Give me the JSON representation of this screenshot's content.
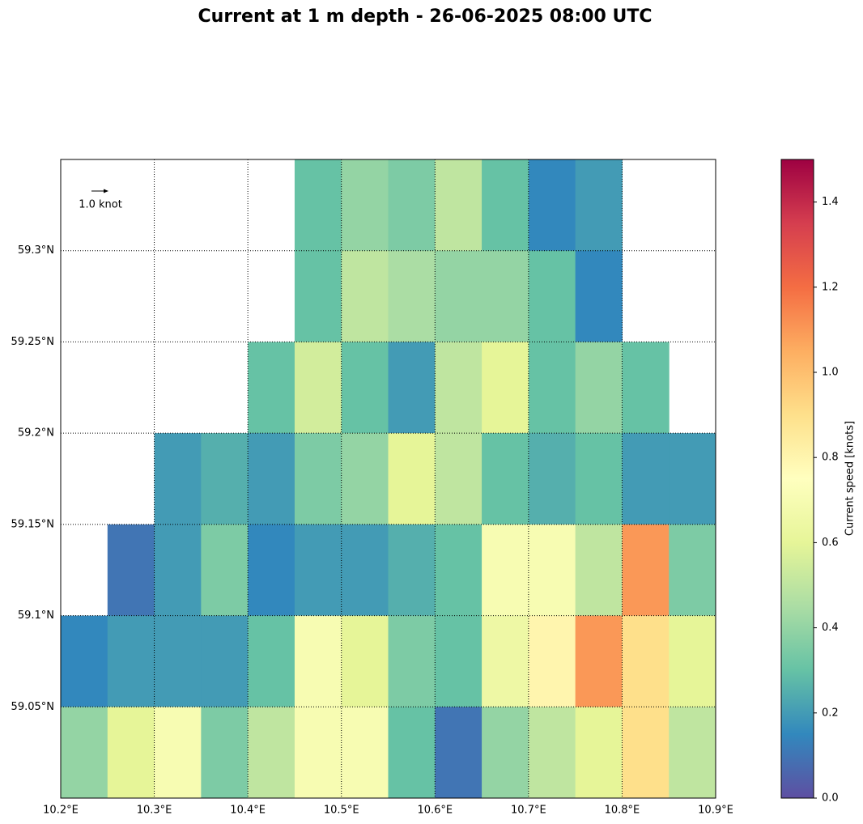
{
  "chart_data": {
    "type": "heatmap",
    "title": "Current at 1 m depth - 26-06-2025 08:00 UTC",
    "colorbar_label": "Current speed [knots]",
    "quiver_key": "1.0 knot",
    "xlim": [
      10.2,
      10.9
    ],
    "ylim": [
      59.0,
      59.35
    ],
    "xticks": [
      {
        "value": 10.2,
        "label": "10.2°E"
      },
      {
        "value": 10.3,
        "label": "10.3°E"
      },
      {
        "value": 10.4,
        "label": "10.4°E"
      },
      {
        "value": 10.5,
        "label": "10.5°E"
      },
      {
        "value": 10.6,
        "label": "10.6°E"
      },
      {
        "value": 10.7,
        "label": "10.7°E"
      },
      {
        "value": 10.8,
        "label": "10.8°E"
      },
      {
        "value": 10.9,
        "label": "10.9°E"
      }
    ],
    "yticks": [
      {
        "value": 59.05,
        "label": "59.05°N"
      },
      {
        "value": 59.1,
        "label": "59.1°N"
      },
      {
        "value": 59.15,
        "label": "59.15°N"
      },
      {
        "value": 59.2,
        "label": "59.2°N"
      },
      {
        "value": 59.25,
        "label": "59.25°N"
      },
      {
        "value": 59.3,
        "label": "59.3°N"
      }
    ],
    "grid": true,
    "clim": [
      0,
      1.5
    ],
    "cticks": [
      {
        "value": 0,
        "label": "0.0"
      },
      {
        "value": 0.2,
        "label": "0.2"
      },
      {
        "value": 0.4,
        "label": "0.4"
      },
      {
        "value": 0.6,
        "label": "0.6"
      },
      {
        "value": 0.8,
        "label": "0.8"
      },
      {
        "value": 1.0,
        "label": "1.0"
      },
      {
        "value": 1.2,
        "label": "1.2"
      },
      {
        "value": 1.4,
        "label": "1.4"
      }
    ],
    "colormap": [
      "#5e4fa2",
      "#3288bd",
      "#66c2a5",
      "#abdda4",
      "#e6f598",
      "#ffffbf",
      "#fee08b",
      "#fdae61",
      "#f46d43",
      "#d53e4f",
      "#9e0142"
    ],
    "lon_edges": [
      10.2,
      10.25,
      10.3,
      10.35,
      10.4,
      10.45,
      10.5,
      10.55,
      10.6,
      10.65,
      10.7,
      10.75,
      10.8,
      10.85,
      10.9
    ],
    "lat_edges": [
      59.35,
      59.3,
      59.25,
      59.2,
      59.15,
      59.1,
      59.05,
      59.0
    ],
    "speed": [
      [
        null,
        null,
        null,
        null,
        null,
        0.3,
        0.4,
        0.35,
        0.5,
        0.3,
        0.15,
        0.2,
        null,
        null
      ],
      [
        null,
        null,
        null,
        null,
        null,
        0.3,
        0.5,
        0.45,
        0.4,
        0.4,
        0.3,
        0.15,
        null,
        null
      ],
      [
        null,
        null,
        null,
        null,
        0.3,
        0.55,
        0.3,
        0.2,
        0.5,
        0.6,
        0.3,
        0.4,
        0.3,
        null
      ],
      [
        null,
        null,
        0.2,
        0.25,
        0.2,
        0.35,
        0.4,
        0.6,
        0.5,
        0.3,
        0.25,
        0.3,
        0.2,
        0.2
      ],
      [
        null,
        0.1,
        0.2,
        0.35,
        0.15,
        0.2,
        0.2,
        0.25,
        0.3,
        0.7,
        0.7,
        0.5,
        1.1,
        0.35
      ],
      [
        0.15,
        0.2,
        0.2,
        0.2,
        0.3,
        0.7,
        0.6,
        0.35,
        0.3,
        0.65,
        0.8,
        1.1,
        0.9,
        0.6
      ],
      [
        0.4,
        0.6,
        0.7,
        0.35,
        0.5,
        0.7,
        0.7,
        0.3,
        0.1,
        0.4,
        0.5,
        0.6,
        0.9,
        0.5
      ]
    ]
  }
}
